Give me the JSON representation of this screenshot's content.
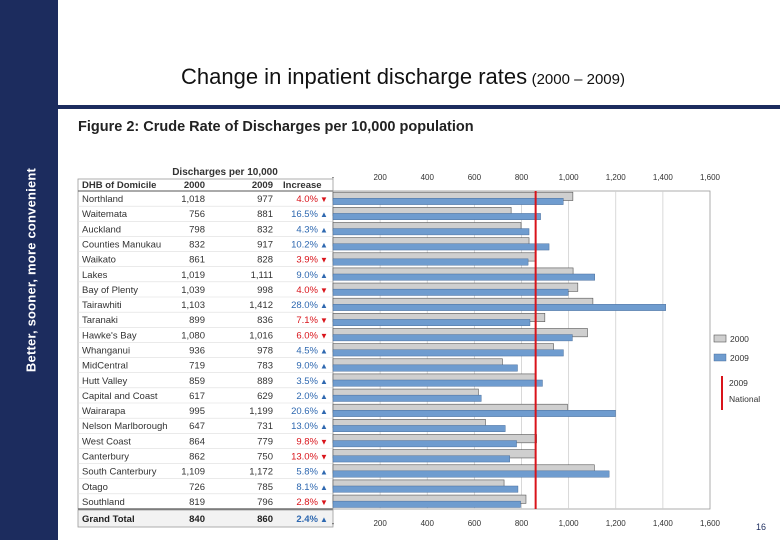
{
  "slide": {
    "tagline": "Better, sooner, more convenient",
    "title_main": "Change in inpatient discharge rates",
    "title_range": "(2000 – 2009)",
    "page_number": "16"
  },
  "colors": {
    "sidebar": "#1c2c5e",
    "bar2000": "#cfcfcf",
    "bar2009": "#6f9ccf",
    "national": "#d9141b",
    "down": "#d9141b",
    "up": "#2e68b0"
  },
  "chart_data": {
    "type": "bar",
    "orientation": "horizontal",
    "title": "Figure 2: Crude Rate of Discharges per 10,000 population",
    "table_header": {
      "group": "Discharges per 10,000",
      "dhb": "DHB of Domicile",
      "col2000": "2000",
      "col2009": "2009",
      "increase": "Increase"
    },
    "categories": [
      "Northland",
      "Waitemata",
      "Auckland",
      "Counties Manukau",
      "Waikato",
      "Lakes",
      "Bay of Plenty",
      "Tairawhiti",
      "Taranaki",
      "Hawke's Bay",
      "Whanganui",
      "MidCentral",
      "Hutt Valley",
      "Capital and Coast",
      "Wairarapa",
      "Nelson Marlborough",
      "West Coast",
      "Canterbury",
      "South Canterbury",
      "Otago",
      "Southland"
    ],
    "series": [
      {
        "name": "2000",
        "values": [
          1018,
          756,
          798,
          832,
          861,
          1019,
          1039,
          1103,
          899,
          1080,
          936,
          719,
          859,
          617,
          995,
          647,
          864,
          862,
          1109,
          726,
          819
        ]
      },
      {
        "name": "2009",
        "values": [
          977,
          881,
          832,
          917,
          828,
          1111,
          998,
          1412,
          836,
          1016,
          978,
          783,
          889,
          629,
          1199,
          731,
          779,
          750,
          1172,
          785,
          796
        ]
      }
    ],
    "value_labels_2000": [
      "1,018",
      "756",
      "798",
      "832",
      "861",
      "1,019",
      "1,039",
      "1,103",
      "899",
      "1,080",
      "936",
      "719",
      "859",
      "617",
      "995",
      "647",
      "864",
      "862",
      "1,109",
      "726",
      "819"
    ],
    "value_labels_2009": [
      "977",
      "881",
      "832",
      "917",
      "828",
      "1,111",
      "998",
      "1,412",
      "836",
      "1,016",
      "978",
      "783",
      "889",
      "629",
      "1,199",
      "731",
      "779",
      "750",
      "1,172",
      "785",
      "796"
    ],
    "increase_labels": [
      "4.0%",
      "16.5%",
      "4.3%",
      "10.2%",
      "3.9%",
      "9.0%",
      "4.0%",
      "28.0%",
      "7.1%",
      "6.0%",
      "4.5%",
      "9.0%",
      "3.5%",
      "2.0%",
      "20.6%",
      "13.0%",
      "9.8%",
      "13.0%",
      "5.8%",
      "8.1%",
      "2.8%"
    ],
    "direction": [
      "down",
      "up",
      "up",
      "up",
      "down",
      "up",
      "down",
      "up",
      "down",
      "down",
      "up",
      "up",
      "up",
      "up",
      "up",
      "up",
      "down",
      "down",
      "up",
      "up",
      "down"
    ],
    "total": {
      "label": "Grand Total",
      "v2000": "840",
      "v2009": "860",
      "increase": "2.4%",
      "direction": "up"
    },
    "national_2009": 860,
    "xlim": [
      0,
      1600
    ],
    "x_ticks": [
      0,
      200,
      400,
      600,
      800,
      1000,
      1200,
      1400,
      1600
    ],
    "x_tick_labels": [
      "-",
      "200",
      "400",
      "600",
      "800",
      "1,000",
      "1,200",
      "1,400",
      "1,600"
    ],
    "legend": [
      {
        "label": "2000",
        "key": "bar2000"
      },
      {
        "label": "2009",
        "key": "bar2009"
      },
      {
        "label": "2009 National",
        "key": "national"
      }
    ]
  }
}
